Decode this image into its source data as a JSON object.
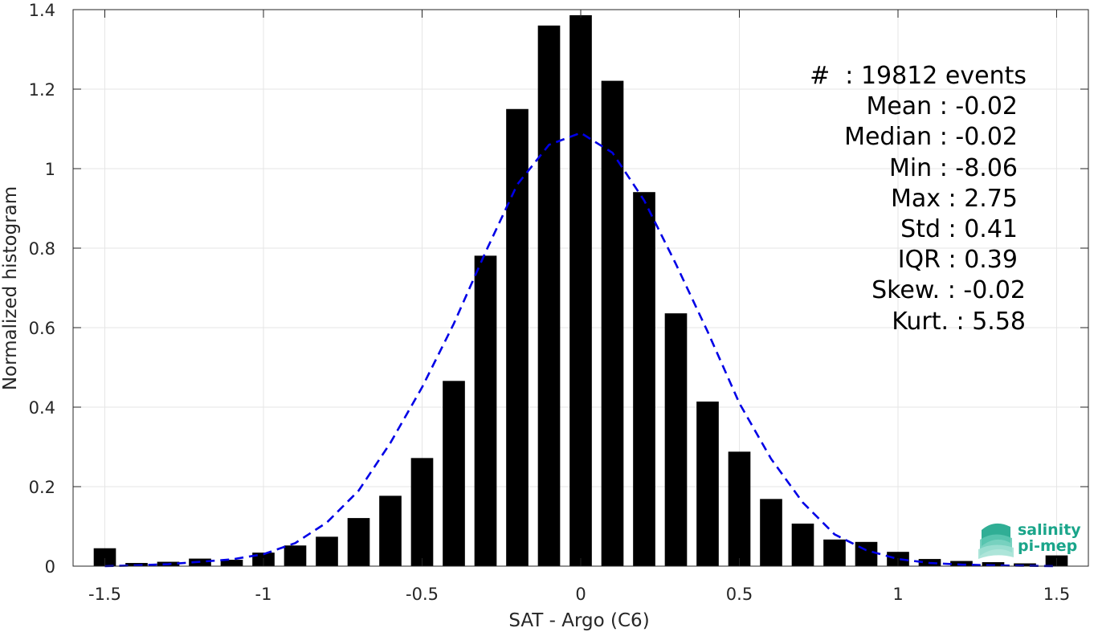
{
  "chart_data": {
    "type": "bar",
    "xlabel": "SAT - Argo (C6)",
    "ylabel": "Normalized histogram",
    "xlim": [
      -1.6,
      1.6
    ],
    "ylim": [
      0,
      1.4
    ],
    "x_ticks": [
      -1.5,
      -1,
      -0.5,
      0,
      0.5,
      1,
      1.5
    ],
    "x_tick_labels": [
      "-1.5",
      "-1",
      "-0.5",
      "0",
      "0.5",
      "1",
      "1.5"
    ],
    "y_ticks": [
      0,
      0.2,
      0.4,
      0.6,
      0.8,
      1,
      1.2,
      1.4
    ],
    "y_tick_labels": [
      "0",
      "0.2",
      "0.4",
      "0.6",
      "0.8",
      "1",
      "1.2",
      "1.4"
    ],
    "grid": true,
    "series": [
      {
        "type": "bar",
        "color": "#000000",
        "bin_width": 0.1,
        "x": [
          -1.5,
          -1.4,
          -1.3,
          -1.2,
          -1.1,
          -1.0,
          -0.9,
          -0.8,
          -0.7,
          -0.6,
          -0.5,
          -0.4,
          -0.3,
          -0.2,
          -0.1,
          0.0,
          0.1,
          0.2,
          0.3,
          0.4,
          0.5,
          0.6,
          0.7,
          0.8,
          0.9,
          1.0,
          1.1,
          1.2,
          1.3,
          1.4,
          1.5
        ],
        "values": [
          0.045,
          0.008,
          0.011,
          0.019,
          0.016,
          0.034,
          0.052,
          0.074,
          0.121,
          0.177,
          0.272,
          0.466,
          0.781,
          1.15,
          1.36,
          1.386,
          1.221,
          0.941,
          0.636,
          0.414,
          0.288,
          0.169,
          0.107,
          0.067,
          0.061,
          0.036,
          0.018,
          0.013,
          0.01,
          0.007,
          0.027
        ]
      },
      {
        "type": "line",
        "style": "dashed",
        "color": "#0000e6",
        "x": [
          -1.5,
          -1.4,
          -1.3,
          -1.2,
          -1.1,
          -1.0,
          -0.9,
          -0.8,
          -0.7,
          -0.6,
          -0.5,
          -0.4,
          -0.3,
          -0.2,
          -0.1,
          0.0,
          0.1,
          0.2,
          0.3,
          0.4,
          0.5,
          0.6,
          0.7,
          0.8,
          0.9,
          1.0,
          1.1,
          1.2,
          1.3,
          1.4,
          1.5
        ],
        "values": [
          0.0,
          0.002,
          0.005,
          0.011,
          0.017,
          0.03,
          0.058,
          0.11,
          0.19,
          0.31,
          0.45,
          0.61,
          0.79,
          0.96,
          1.06,
          1.09,
          1.04,
          0.92,
          0.76,
          0.59,
          0.41,
          0.27,
          0.16,
          0.08,
          0.04,
          0.018,
          0.008,
          0.004,
          0.002,
          0.001,
          0.0
        ]
      }
    ],
    "stats": {
      "lines": [
        "#  : 19812 events",
        "Mean : -0.02",
        "Median : -0.02",
        "Min : -8.06",
        "Max : 2.75",
        "Std : 0.41",
        "IQR : 0.39",
        "Skew. : -0.02",
        "Kurt. : 5.58"
      ],
      "placement": "top-right"
    }
  },
  "logo": {
    "line1": "salinity",
    "line2": "pi-mep",
    "color": "#1aa58a",
    "placement": "bottom-right"
  }
}
